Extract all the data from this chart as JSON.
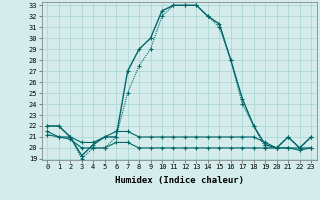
{
  "xlabel": "Humidex (Indice chaleur)",
  "hours": [
    0,
    1,
    2,
    3,
    4,
    5,
    6,
    7,
    8,
    9,
    10,
    11,
    12,
    13,
    14,
    15,
    16,
    17,
    18,
    19,
    20,
    21,
    22,
    23
  ],
  "series1": [
    22,
    22,
    21,
    19.3,
    20.3,
    21,
    21,
    27,
    29,
    30,
    32.5,
    33,
    33,
    33,
    32,
    31.3,
    28,
    24.5,
    22,
    20.3,
    20,
    21,
    20,
    21
  ],
  "series2": [
    22,
    22,
    21,
    19,
    20,
    20,
    21,
    25,
    27.5,
    29,
    32,
    33,
    33,
    33,
    32,
    31,
    28,
    24,
    22,
    20,
    20,
    21,
    20,
    21
  ],
  "series3": [
    21.5,
    21,
    21,
    20.5,
    20.5,
    21,
    21.5,
    21.5,
    21,
    21,
    21,
    21,
    21,
    21,
    21,
    21,
    21,
    21,
    21,
    20.5,
    20,
    20,
    20,
    20
  ],
  "series4": [
    21.2,
    21,
    20.8,
    20,
    20,
    20,
    20.5,
    20.5,
    20,
    20,
    20,
    20,
    20,
    20,
    20,
    20,
    20,
    20,
    20,
    20,
    20,
    20,
    19.8,
    20
  ],
  "ylim": [
    19,
    33
  ],
  "yticks": [
    19,
    20,
    21,
    22,
    23,
    24,
    25,
    26,
    27,
    28,
    29,
    30,
    31,
    32,
    33
  ],
  "line_color": "#006666",
  "bg_color": "#d4edec",
  "grid_color": "#a8d4d0"
}
